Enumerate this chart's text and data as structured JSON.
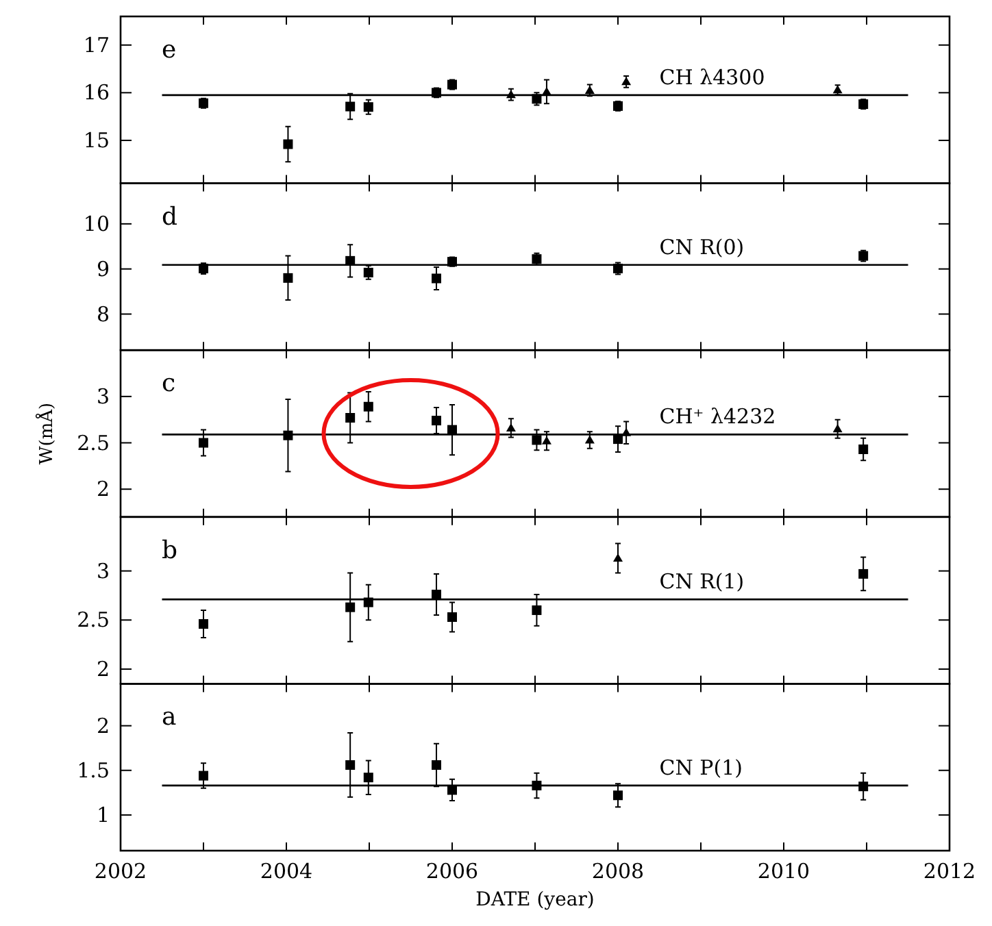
{
  "chart_data": [
    {
      "type": "scatter",
      "xlim": [
        2002,
        2012
      ],
      "xticks": [
        {
          "value": 2002,
          "label": null
        },
        {
          "value": 2003,
          "label": null
        },
        {
          "value": 2004,
          "label": null
        },
        {
          "value": 2005,
          "label": null
        },
        {
          "value": 2006,
          "label": null
        },
        {
          "value": 2007,
          "label": null
        },
        {
          "value": 2008,
          "label": null
        },
        {
          "value": 2009,
          "label": null
        },
        {
          "value": 2010,
          "label": null
        },
        {
          "value": 2011,
          "label": null
        },
        {
          "value": 2012,
          "label": null
        }
      ],
      "ylim": [
        14.1,
        17.6
      ],
      "yticks": [
        15,
        16,
        17
      ],
      "tick_labels": "y",
      "annotations": [
        "e",
        "CH λ4300"
      ],
      "series": [
        {
          "color": "#000000",
          "marker": "square",
          "x": [
            2003.0,
            2004.02,
            2004.77,
            2004.99,
            2005.81,
            2006.0,
            2007.02,
            2008.0,
            2010.96
          ],
          "values": [
            15.78,
            14.92,
            15.71,
            15.7,
            16.0,
            16.17,
            15.87,
            15.72,
            15.76
          ],
          "errors": [
            0.1,
            0.37,
            0.27,
            0.15,
            0.1,
            0.1,
            0.13,
            0.1,
            0.1
          ]
        },
        {
          "color": "#000000",
          "marker": "triangle",
          "x": [
            2006.71,
            2007.14,
            2007.66,
            2008.1,
            2010.65
          ],
          "values": [
            15.96,
            16.02,
            16.05,
            16.23,
            16.06
          ],
          "errors": [
            0.12,
            0.25,
            0.12,
            0.12,
            0.1
          ]
        },
        {
          "type": "line",
          "color": "#000000",
          "marker": "none",
          "line_style": "solid",
          "x": [
            2002.5,
            2011.5
          ],
          "values": [
            15.95,
            15.95
          ]
        }
      ]
    },
    {
      "type": "scatter",
      "xlim": [
        2002,
        2012
      ],
      "xticks": [
        {
          "value": 2002,
          "label": null
        },
        {
          "value": 2003,
          "label": null
        },
        {
          "value": 2004,
          "label": null
        },
        {
          "value": 2005,
          "label": null
        },
        {
          "value": 2006,
          "label": null
        },
        {
          "value": 2007,
          "label": null
        },
        {
          "value": 2008,
          "label": null
        },
        {
          "value": 2009,
          "label": null
        },
        {
          "value": 2010,
          "label": null
        },
        {
          "value": 2011,
          "label": null
        },
        {
          "value": 2012,
          "label": null
        }
      ],
      "ylim": [
        7.2,
        10.9
      ],
      "yticks": [
        8,
        9,
        10
      ],
      "tick_labels": "y",
      "annotations": [
        "d",
        "CN R(0)"
      ],
      "series": [
        {
          "color": "#000000",
          "marker": "square",
          "x": [
            2003.0,
            2004.02,
            2004.77,
            2004.99,
            2005.81,
            2006.0,
            2007.02,
            2008.0,
            2010.96
          ],
          "values": [
            9.01,
            8.8,
            9.18,
            8.92,
            8.79,
            9.16,
            9.22,
            9.01,
            9.29
          ],
          "errors": [
            0.12,
            0.49,
            0.36,
            0.15,
            0.25,
            0.1,
            0.13,
            0.13,
            0.12
          ]
        },
        {
          "type": "line",
          "color": "#000000",
          "marker": "none",
          "line_style": "solid",
          "x": [
            2002.5,
            2011.5
          ],
          "values": [
            9.09,
            9.09
          ]
        }
      ]
    },
    {
      "type": "scatter",
      "xlim": [
        2002,
        2012
      ],
      "xticks": [
        {
          "value": 2002,
          "label": null
        },
        {
          "value": 2003,
          "label": null
        },
        {
          "value": 2004,
          "label": null
        },
        {
          "value": 2005,
          "label": null
        },
        {
          "value": 2006,
          "label": null
        },
        {
          "value": 2007,
          "label": null
        },
        {
          "value": 2008,
          "label": null
        },
        {
          "value": 2009,
          "label": null
        },
        {
          "value": 2010,
          "label": null
        },
        {
          "value": 2011,
          "label": null
        },
        {
          "value": 2012,
          "label": null
        }
      ],
      "ylim": [
        1.7,
        3.5
      ],
      "yticks": [
        2,
        2.5,
        3
      ],
      "tick_labels": "y",
      "ylabel": "W(mÅ)",
      "annotations": [
        "c",
        "CH⁺ λ4232"
      ],
      "series": [
        {
          "color": "#000000",
          "marker": "square",
          "x": [
            2003.0,
            2004.02,
            2004.77,
            2004.99,
            2005.81,
            2006.0,
            2007.02,
            2008.0,
            2010.96
          ],
          "values": [
            2.5,
            2.58,
            2.77,
            2.89,
            2.74,
            2.64,
            2.53,
            2.54,
            2.43
          ],
          "errors": [
            0.14,
            0.39,
            0.27,
            0.16,
            0.14,
            0.27,
            0.11,
            0.14,
            0.12
          ]
        },
        {
          "color": "#000000",
          "marker": "triangle",
          "x": [
            2006.71,
            2007.14,
            2007.66,
            2008.1,
            2010.65
          ],
          "values": [
            2.66,
            2.52,
            2.53,
            2.61,
            2.65
          ],
          "errors": [
            0.1,
            0.1,
            0.09,
            0.12,
            0.1
          ]
        },
        {
          "type": "line",
          "color": "#000000",
          "marker": "none",
          "line_style": "solid",
          "x": [
            2002.5,
            2011.5
          ],
          "values": [
            2.59,
            2.59
          ]
        }
      ]
    },
    {
      "type": "scatter",
      "xlim": [
        2002,
        2012
      ],
      "xticks": [
        {
          "value": 2002,
          "label": null
        },
        {
          "value": 2003,
          "label": null
        },
        {
          "value": 2004,
          "label": null
        },
        {
          "value": 2005,
          "label": null
        },
        {
          "value": 2006,
          "label": null
        },
        {
          "value": 2007,
          "label": null
        },
        {
          "value": 2008,
          "label": null
        },
        {
          "value": 2009,
          "label": null
        },
        {
          "value": 2010,
          "label": null
        },
        {
          "value": 2011,
          "label": null
        },
        {
          "value": 2012,
          "label": null
        }
      ],
      "ylim": [
        1.85,
        3.55
      ],
      "yticks": [
        2,
        2.5,
        3
      ],
      "tick_labels": "y",
      "annotations": [
        "b",
        "CN R(1)"
      ],
      "series": [
        {
          "color": "#000000",
          "marker": "square",
          "x": [
            2003.0,
            2004.77,
            2004.99,
            2005.81,
            2006.0,
            2007.02,
            2010.96
          ],
          "values": [
            2.46,
            2.63,
            2.68,
            2.76,
            2.53,
            2.6,
            2.97
          ],
          "errors": [
            0.14,
            0.35,
            0.18,
            0.21,
            0.15,
            0.16,
            0.17
          ]
        },
        {
          "color": "#000000",
          "marker": "triangle",
          "x": [
            2008.0
          ],
          "values": [
            3.13
          ],
          "errors": [
            0.15
          ]
        },
        {
          "type": "line",
          "color": "#000000",
          "marker": "none",
          "line_style": "solid",
          "x": [
            2002.5,
            2011.5
          ],
          "values": [
            2.71,
            2.71
          ]
        }
      ]
    },
    {
      "type": "scatter",
      "xlim": [
        2002,
        2012
      ],
      "xticks": [
        2002,
        {
          "value": 2003,
          "label": null
        },
        2004,
        {
          "value": 2005,
          "label": null
        },
        2006,
        {
          "value": 2007,
          "label": null
        },
        2008,
        {
          "value": 2009,
          "label": null
        },
        2010,
        {
          "value": 2011,
          "label": null
        },
        2012
      ],
      "ylim": [
        0.6,
        2.47
      ],
      "yticks": [
        1,
        1.5,
        2
      ],
      "xlabel": "DATE (year)",
      "annotations": [
        "a",
        "CN P(1)"
      ],
      "series": [
        {
          "color": "#000000",
          "marker": "square",
          "x": [
            2003.0,
            2004.77,
            2004.99,
            2005.81,
            2006.0,
            2007.02,
            2008.0,
            2010.96
          ],
          "values": [
            1.44,
            1.56,
            1.42,
            1.56,
            1.28,
            1.33,
            1.22,
            1.32
          ],
          "errors": [
            0.14,
            0.36,
            0.19,
            0.24,
            0.12,
            0.14,
            0.13,
            0.15
          ]
        },
        {
          "type": "line",
          "color": "#000000",
          "marker": "none",
          "line_style": "solid",
          "x": [
            2002.5,
            2011.5
          ],
          "values": [
            1.33,
            1.33
          ]
        }
      ]
    }
  ]
}
